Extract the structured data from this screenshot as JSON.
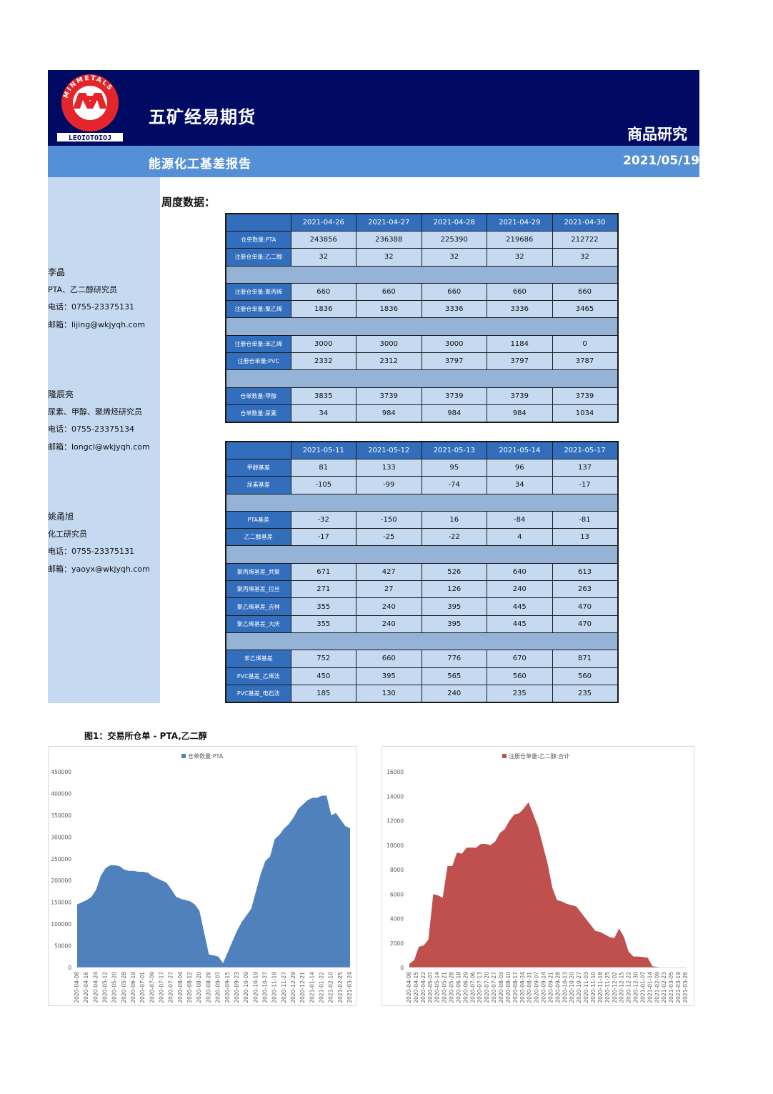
{
  "header": {
    "company": "五矿经易期货",
    "section": "商品研究",
    "report_title": "能源化工基差报告",
    "date": "2021/05/19",
    "logo_text_top": "MINMETALS",
    "logo_text_bottom": "LEOIOTOIOJ"
  },
  "contacts": [
    {
      "name": "李晶",
      "role": "PTA、乙二醇研究员",
      "phone": "电话：0755-23375131",
      "email": "邮箱：lijing@wkjyqh.com"
    },
    {
      "name": "隆辰亮",
      "role": "尿素、甲醇、聚烯烃研究员",
      "phone": "电话：0755-23375134",
      "email": "邮箱：longcl@wkjyqh.com"
    },
    {
      "name": "姚甬旭",
      "role": "化工研究员",
      "phone": "电话：0755-23375131",
      "email": "邮箱：yaoyx@wkjyqh.com"
    }
  ],
  "weekly_title": "周度数据：",
  "table1": {
    "dates": [
      "2021-04-26",
      "2021-04-27",
      "2021-04-28",
      "2021-04-29",
      "2021-04-30"
    ],
    "rows": [
      {
        "label": "仓单数量:PTA",
        "values": [
          "243856",
          "236388",
          "225390",
          "219686",
          "212722"
        ]
      },
      {
        "label": "注册仓单量:乙二醇",
        "values": [
          "32",
          "32",
          "32",
          "32",
          "32"
        ]
      },
      {
        "sep": true
      },
      {
        "label": "注册仓单量:聚丙烯",
        "values": [
          "660",
          "660",
          "660",
          "660",
          "660"
        ]
      },
      {
        "label": "注册仓单量:聚乙烯",
        "values": [
          "1836",
          "1836",
          "3336",
          "3336",
          "3465"
        ]
      },
      {
        "sep": true
      },
      {
        "label": "注册仓单量:苯乙烯",
        "values": [
          "3000",
          "3000",
          "3000",
          "1184",
          "0"
        ]
      },
      {
        "label": "注册仓单量:PVC",
        "values": [
          "2332",
          "2312",
          "3797",
          "3797",
          "3787"
        ]
      },
      {
        "sep": true
      },
      {
        "label": "仓单数量:甲醇",
        "values": [
          "3835",
          "3739",
          "3739",
          "3739",
          "3739"
        ]
      },
      {
        "label": "仓单数量:尿素",
        "values": [
          "34",
          "984",
          "984",
          "984",
          "1034"
        ]
      }
    ]
  },
  "table2": {
    "dates": [
      "2021-05-11",
      "2021-05-12",
      "2021-05-13",
      "2021-05-14",
      "2021-05-17"
    ],
    "rows": [
      {
        "label": "甲醇基差",
        "values": [
          "81",
          "133",
          "95",
          "96",
          "137"
        ]
      },
      {
        "label": "尿素基差",
        "values": [
          "-105",
          "-99",
          "-74",
          "34",
          "-17"
        ]
      },
      {
        "sep": true
      },
      {
        "label": "PTA基差",
        "values": [
          "-32",
          "-150",
          "16",
          "-84",
          "-81"
        ]
      },
      {
        "label": "乙二醇基差",
        "values": [
          "-17",
          "-25",
          "-22",
          "4",
          "13"
        ]
      },
      {
        "sep": true
      },
      {
        "label": "聚丙烯基差_共聚",
        "values": [
          "671",
          "427",
          "526",
          "640",
          "613"
        ]
      },
      {
        "label": "聚丙烯基差_拉丝",
        "values": [
          "271",
          "27",
          "126",
          "240",
          "263"
        ]
      },
      {
        "label": "聚乙烯基差_吉林",
        "values": [
          "355",
          "240",
          "395",
          "445",
          "470"
        ]
      },
      {
        "label": "聚乙烯基差_大庆",
        "values": [
          "355",
          "240",
          "395",
          "445",
          "470"
        ]
      },
      {
        "sep": true
      },
      {
        "label": "苯乙烯基差",
        "values": [
          "752",
          "660",
          "776",
          "670",
          "871"
        ]
      },
      {
        "label": "PVC基差_乙烯法",
        "values": [
          "450",
          "395",
          "565",
          "560",
          "560"
        ]
      },
      {
        "label": "PVC基差_电石法",
        "values": [
          "185",
          "130",
          "240",
          "235",
          "235"
        ]
      }
    ]
  },
  "figure1_title": "图1：交易所仓单 - PTA,乙二醇",
  "chart_data": [
    {
      "type": "area",
      "title": "",
      "legend": "仓单数量:PTA",
      "color": "#4f81bd",
      "ylim": [
        0,
        450000
      ],
      "yticks": [
        "0",
        "50000",
        "100000",
        "150000",
        "200000",
        "250000",
        "300000",
        "350000",
        "400000",
        "450000"
      ],
      "xticks": [
        "2020-04-08",
        "2020-04-16",
        "2020-04-24",
        "2020-05-12",
        "2020-05-20",
        "2020-05-28",
        "2020-06-19",
        "2020-07-01",
        "2020-07-09",
        "2020-07-17",
        "2020-07-27",
        "2020-08-04",
        "2020-08-12",
        "2020-08-20",
        "2020-08-28",
        "2020-09-07",
        "2020-09-15",
        "2020-09-23",
        "2020-10-09",
        "2020-10-19",
        "2020-10-27",
        "2020-11-19",
        "2020-11-27",
        "2020-12-29",
        "2020-12-21",
        "2021-01-14",
        "2021-01-22",
        "2021-02-10",
        "2021-02-25",
        "2021-03-24"
      ],
      "x": [
        0,
        1,
        2,
        3,
        4,
        5,
        6,
        7,
        8,
        9,
        10,
        11,
        12,
        13,
        14,
        15,
        16,
        17,
        18,
        19,
        20,
        21,
        22,
        23,
        24,
        25,
        26,
        27,
        28,
        29,
        30,
        31,
        32,
        33,
        34,
        35,
        36,
        37,
        38,
        39,
        40,
        41,
        42,
        43,
        44,
        45,
        46,
        47,
        48,
        49,
        50,
        51,
        52,
        53,
        54,
        55,
        56,
        57,
        58
      ],
      "values": [
        145000,
        150000,
        155000,
        162000,
        178000,
        210000,
        228000,
        235000,
        235000,
        233000,
        225000,
        222000,
        222000,
        220000,
        220000,
        218000,
        210000,
        205000,
        200000,
        195000,
        180000,
        163000,
        158000,
        155000,
        152000,
        145000,
        130000,
        80000,
        30000,
        28000,
        25000,
        10000,
        35000,
        60000,
        85000,
        105000,
        120000,
        135000,
        175000,
        215000,
        245000,
        255000,
        295000,
        305000,
        320000,
        330000,
        345000,
        365000,
        375000,
        385000,
        390000,
        390000,
        395000,
        395000,
        350000,
        355000,
        340000,
        325000,
        320000
      ]
    },
    {
      "type": "area",
      "title": "",
      "legend": "注册仓单量:乙二醇:合计",
      "color": "#c0504d",
      "ylim": [
        0,
        16000
      ],
      "yticks": [
        "0",
        "2000",
        "4000",
        "6000",
        "8000",
        "10000",
        "12000",
        "14000",
        "16000"
      ],
      "xticks": [
        "2020-04-08",
        "2020-04-15",
        "2020-04-22",
        "2020-05-07",
        "2020-05-14",
        "2020-05-21",
        "2020-05-28",
        "2020-06-18",
        "2020-06-29",
        "2020-07-06",
        "2020-07-13",
        "2020-07-20",
        "2020-07-27",
        "2020-08-03",
        "2020-08-10",
        "2020-08-17",
        "2020-08-24",
        "2020-08-31",
        "2020-09-07",
        "2020-09-14",
        "2020-09-21",
        "2020-09-28",
        "2020-10-13",
        "2020-10-20",
        "2020-10-27",
        "2020-11-03",
        "2020-11-10",
        "2020-11-18",
        "2020-11-25",
        "2020-12-02",
        "2020-12-15",
        "2020-12-22",
        "2020-12-30",
        "2021-01-07",
        "2021-01-14",
        "2021-02-09",
        "2021-02-23",
        "2021-03-05",
        "2021-03-19",
        "2021-03-26"
      ],
      "x": [
        0,
        1,
        2,
        3,
        4,
        5,
        6,
        7,
        8,
        9,
        10,
        11,
        12,
        13,
        14,
        15,
        16,
        17,
        18,
        19,
        20,
        21,
        22,
        23,
        24,
        25,
        26,
        27,
        28,
        29,
        30,
        31,
        32,
        33,
        34,
        35,
        36,
        37,
        38,
        39,
        40,
        41,
        42,
        43,
        44,
        45,
        46,
        47,
        48,
        49,
        50,
        51,
        52,
        53,
        54,
        55,
        56,
        57,
        58
      ],
      "values": [
        300,
        600,
        1700,
        1800,
        2300,
        6000,
        5900,
        5700,
        8300,
        8300,
        9400,
        9300,
        9800,
        9800,
        9800,
        10100,
        10100,
        10000,
        10300,
        11000,
        11300,
        12000,
        12500,
        12600,
        13000,
        13500,
        12500,
        11500,
        10000,
        8500,
        6500,
        5500,
        5400,
        5200,
        5100,
        5000,
        4500,
        4000,
        3500,
        3000,
        2900,
        2700,
        2500,
        2400,
        3200,
        2500,
        1300,
        900,
        900,
        850,
        800,
        100,
        50,
        0,
        0,
        0,
        0,
        0,
        0
      ]
    }
  ]
}
